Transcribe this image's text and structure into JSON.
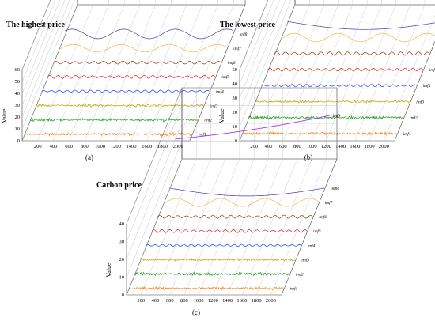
{
  "panels": [
    {
      "caption": "(a)",
      "chart_data": {
        "type": "line",
        "view": "3d-waterfall",
        "title": "The highest price",
        "ylabel": "Value",
        "xlim": [
          0,
          2150
        ],
        "ylim": [
          0,
          60
        ],
        "x_ticks": [
          200,
          400,
          600,
          800,
          1000,
          1200,
          1400,
          1600,
          1800,
          2000
        ],
        "z_ticks": [
          0,
          10,
          20,
          30,
          40,
          50,
          60
        ],
        "series": [
          {
            "name": "imf1",
            "color": "#ff7f0e",
            "amplitude": 0.5,
            "form": "noise"
          },
          {
            "name": "imf2",
            "color": "#1f9f1f",
            "amplitude": 0.55,
            "form": "noise"
          },
          {
            "name": "imf3",
            "color": "#b5ab00",
            "amplitude": 0.45,
            "form": "noise"
          },
          {
            "name": "imf4",
            "color": "#1f3fff",
            "amplitude": 0.45,
            "form": "oscillation"
          },
          {
            "name": "imf5",
            "color": "#e0201c",
            "amplitude": 0.6,
            "form": "oscillation"
          },
          {
            "name": "imf6",
            "color": "#8b3a10",
            "amplitude": 0.6,
            "form": "oscillation"
          },
          {
            "name": "imf7",
            "color": "#f0b64a",
            "amplitude": 0.8,
            "form": "wave"
          },
          {
            "name": "imf8",
            "color": "#3f3fbf",
            "amplitude": 1.0,
            "form": "wave"
          },
          {
            "name": "imf9",
            "color": "#a020f0",
            "amplitude": 1.0,
            "form": "trend-up"
          }
        ]
      }
    },
    {
      "caption": "(b)",
      "chart_data": {
        "type": "line",
        "view": "3d-waterfall",
        "title": "The lowest price",
        "ylabel": "Value",
        "xlim": [
          0,
          2150
        ],
        "ylim": [
          0,
          50
        ],
        "x_ticks": [
          200,
          400,
          600,
          800,
          1000,
          1200,
          1400,
          1600,
          1800,
          2000
        ],
        "z_ticks": [
          0,
          10,
          20,
          30,
          40,
          50
        ],
        "series": [
          {
            "name": "imf1",
            "color": "#ff7f0e",
            "amplitude": 0.5,
            "form": "noise"
          },
          {
            "name": "imf2",
            "color": "#1f9f1f",
            "amplitude": 0.5,
            "form": "noise"
          },
          {
            "name": "imf3",
            "color": "#b5ab00",
            "amplitude": 0.4,
            "form": "noise"
          },
          {
            "name": "imf4",
            "color": "#1f3fff",
            "amplitude": 0.5,
            "form": "oscillation"
          },
          {
            "name": "imf5",
            "color": "#e0201c",
            "amplitude": 0.6,
            "form": "oscillation"
          },
          {
            "name": "imf6",
            "color": "#8b3a10",
            "amplitude": 0.7,
            "form": "oscillation"
          },
          {
            "name": "imf7",
            "color": "#f0b64a",
            "amplitude": 0.9,
            "form": "wave"
          },
          {
            "name": "imf8",
            "color": "#3f3fbf",
            "amplitude": 1.0,
            "form": "trend-down"
          }
        ]
      }
    },
    {
      "caption": "(c)",
      "chart_data": {
        "type": "line",
        "view": "3d-waterfall",
        "title": "Carbon price",
        "ylabel": "Value",
        "xlim": [
          0,
          2150
        ],
        "ylim": [
          0,
          40
        ],
        "x_ticks": [
          200,
          400,
          600,
          800,
          1000,
          1200,
          1400,
          1600,
          1800,
          2000
        ],
        "z_ticks": [
          0,
          10,
          20,
          30,
          40
        ],
        "series": [
          {
            "name": "imf1",
            "color": "#ff7f0e",
            "amplitude": 0.5,
            "form": "noise"
          },
          {
            "name": "imf2",
            "color": "#1f9f1f",
            "amplitude": 0.55,
            "form": "noise"
          },
          {
            "name": "imf3",
            "color": "#b5ab00",
            "amplitude": 0.45,
            "form": "noise"
          },
          {
            "name": "imf4",
            "color": "#1f3fff",
            "amplitude": 0.45,
            "form": "oscillation"
          },
          {
            "name": "imf5",
            "color": "#e0201c",
            "amplitude": 0.6,
            "form": "oscillation"
          },
          {
            "name": "imf6",
            "color": "#8b3a10",
            "amplitude": 0.65,
            "form": "oscillation"
          },
          {
            "name": "imf7",
            "color": "#f0b64a",
            "amplitude": 0.85,
            "form": "wave"
          },
          {
            "name": "imf8",
            "color": "#3f3fbf",
            "amplitude": 1.0,
            "form": "trend-down"
          },
          {
            "name": "imf9",
            "color": "#a020f0",
            "amplitude": 1.0,
            "form": "trend-up"
          }
        ]
      }
    }
  ]
}
